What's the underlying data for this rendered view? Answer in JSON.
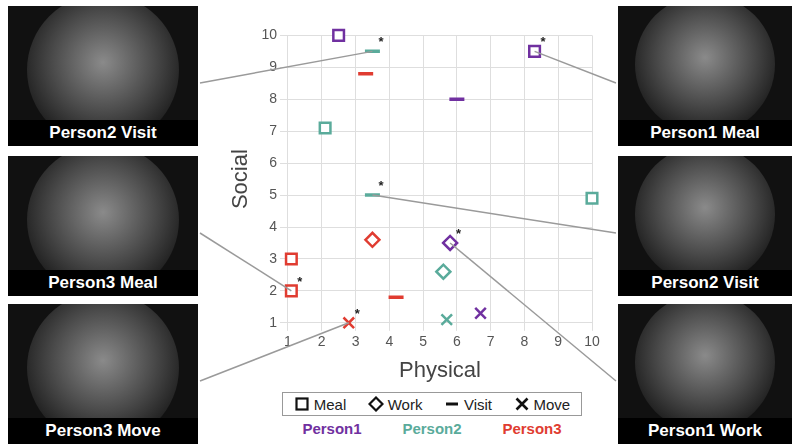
{
  "chart_data": {
    "type": "scatter",
    "xlabel": "Physical",
    "ylabel": "Social",
    "xlim": [
      1,
      10
    ],
    "ylim": [
      1,
      10
    ],
    "xticks": [
      1,
      2,
      3,
      4,
      5,
      6,
      7,
      8,
      9,
      10
    ],
    "yticks": [
      1,
      2,
      3,
      4,
      5,
      6,
      7,
      8,
      9,
      10
    ],
    "grid": true,
    "markers": [
      {
        "name": "Meal",
        "marker": "square"
      },
      {
        "name": "Work",
        "marker": "diamond"
      },
      {
        "name": "Visit",
        "marker": "dash"
      },
      {
        "name": "Move",
        "marker": "x"
      }
    ],
    "series": [
      {
        "name": "Person1",
        "color": "#7030a0",
        "points": [
          {
            "x": 2.5,
            "y": 10,
            "activity": "Meal"
          },
          {
            "x": 8.3,
            "y": 9.5,
            "activity": "Meal",
            "annotation": "*"
          },
          {
            "x": 6,
            "y": 8,
            "activity": "Visit"
          },
          {
            "x": 5.8,
            "y": 3.5,
            "activity": "Work",
            "annotation": "*"
          },
          {
            "x": 6.7,
            "y": 1.3,
            "activity": "Move"
          }
        ]
      },
      {
        "name": "Person2",
        "color": "#5aab9b",
        "points": [
          {
            "x": 3.5,
            "y": 9.5,
            "activity": "Visit",
            "annotation": "*"
          },
          {
            "x": 2.1,
            "y": 7.1,
            "activity": "Meal"
          },
          {
            "x": 3.5,
            "y": 5,
            "activity": "Visit",
            "annotation": "*"
          },
          {
            "x": 10,
            "y": 4.9,
            "activity": "Meal"
          },
          {
            "x": 5.6,
            "y": 2.6,
            "activity": "Work"
          },
          {
            "x": 5.7,
            "y": 1.1,
            "activity": "Move"
          }
        ]
      },
      {
        "name": "Person3",
        "color": "#e03c31",
        "points": [
          {
            "x": 3.3,
            "y": 8.8,
            "activity": "Visit"
          },
          {
            "x": 1.1,
            "y": 3,
            "activity": "Meal"
          },
          {
            "x": 1.1,
            "y": 2,
            "activity": "Meal",
            "annotation": "*"
          },
          {
            "x": 3.5,
            "y": 3.6,
            "activity": "Work"
          },
          {
            "x": 4.2,
            "y": 1.8,
            "activity": "Visit"
          },
          {
            "x": 2.8,
            "y": 1,
            "activity": "Move",
            "annotation": "*"
          }
        ]
      }
    ],
    "photos": [
      {
        "label": "Person2 Visit",
        "side": "left",
        "x": 3.5,
        "y": 9.5
      },
      {
        "label": "Person3 Meal",
        "side": "left",
        "x": 1.1,
        "y": 2
      },
      {
        "label": "Person3 Move",
        "side": "left",
        "x": 2.8,
        "y": 1
      },
      {
        "label": "Person1 Meal",
        "side": "right",
        "x": 8.3,
        "y": 9.5
      },
      {
        "label": "Person2 Visit",
        "side": "right",
        "x": 3.5,
        "y": 5
      },
      {
        "label": "Person1 Work",
        "side": "right",
        "x": 5.8,
        "y": 3.5
      }
    ]
  }
}
